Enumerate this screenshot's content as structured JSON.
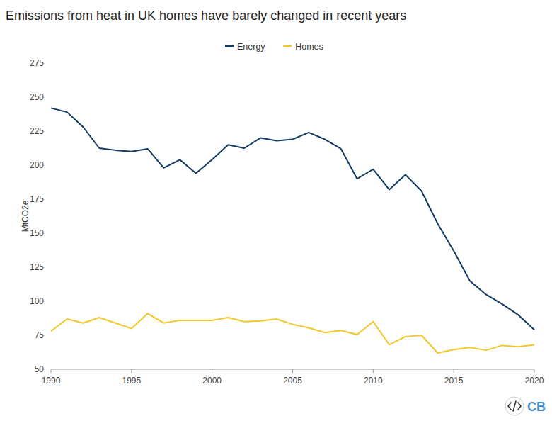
{
  "chart_data": {
    "type": "line",
    "title": "Emissions from heat in UK homes have barely changed in recent years",
    "y_label": "MtCO2e",
    "logo": "CB",
    "x": [
      1990,
      1991,
      1992,
      1993,
      1994,
      1995,
      1996,
      1997,
      1998,
      1999,
      2000,
      2001,
      2002,
      2003,
      2004,
      2005,
      2006,
      2007,
      2008,
      2009,
      2010,
      2011,
      2012,
      2013,
      2014,
      2015,
      2016,
      2017,
      2018,
      2019,
      2020
    ],
    "series": [
      {
        "name": "Energy",
        "color": "#123a62",
        "values": [
          242,
          239,
          228,
          212.5,
          211,
          210,
          212,
          198,
          204,
          194,
          204,
          215,
          212.5,
          220,
          218,
          219,
          224,
          219,
          212,
          190,
          197,
          182,
          193,
          181,
          157,
          137,
          115,
          105,
          98,
          90,
          79
        ]
      },
      {
        "name": "Homes",
        "color": "#f2c72b",
        "values": [
          78,
          87,
          84,
          88,
          84,
          80,
          91,
          84,
          86,
          86,
          86,
          88,
          85,
          85.5,
          87,
          83,
          80.5,
          77,
          78.5,
          75.5,
          85,
          68,
          74,
          75,
          62,
          64.5,
          66,
          64,
          67.5,
          66.5,
          68
        ]
      }
    ],
    "xlim": [
      1990,
      2020
    ],
    "xticks": [
      1990,
      1995,
      2000,
      2005,
      2010,
      2015,
      2020
    ],
    "ylim": [
      50,
      275
    ],
    "yticks": [
      50,
      75,
      100,
      125,
      150,
      175,
      200,
      225,
      250,
      275
    ],
    "grid": false,
    "legend": "top"
  }
}
